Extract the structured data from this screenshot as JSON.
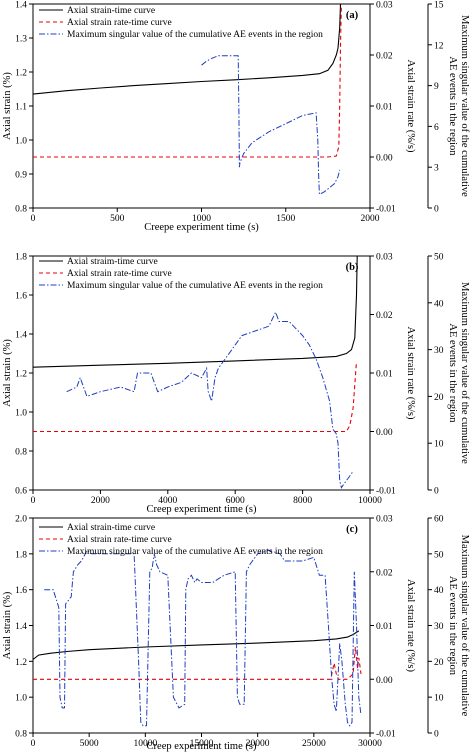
{
  "chart_data": [
    {
      "type": "line",
      "panel_label": "(a)",
      "xlabel": "Creepe experiment time (s)",
      "ylabel": "Axial strain (%)",
      "y2label": "Axial strain rate (%/s)",
      "y3label_line1": "Maximum singular value of the cumulative",
      "y3label_line2": "AE events in the region",
      "xlim": [
        0,
        2000
      ],
      "ylim": [
        0.8,
        1.4
      ],
      "y2lim": [
        -0.01,
        0.03
      ],
      "y3lim": [
        0,
        15
      ],
      "xticks": [
        "0",
        "500",
        "1000",
        "1500",
        "2000"
      ],
      "yticks": [
        "0.8",
        "0.9",
        "1.0",
        "1.1",
        "1.2",
        "1.3",
        "1.4"
      ],
      "y2ticks": [
        "-0.01",
        "0.00",
        "0.01",
        "0.02",
        "0.03"
      ],
      "y3ticks": [
        "0",
        "3",
        "6",
        "9",
        "12",
        "15"
      ],
      "legend": [
        "Axial strain-time curve",
        "Axial strain rate-time curve",
        "Maximum singular value of the cumulative AE events in the region"
      ],
      "series": [
        {
          "name": "Axial strain-time curve",
          "axis": "y",
          "x": [
            0,
            200,
            400,
            600,
            800,
            1000,
            1200,
            1400,
            1600,
            1700,
            1750,
            1780,
            1800,
            1810,
            1820,
            1825
          ],
          "values": [
            1.135,
            1.145,
            1.153,
            1.16,
            1.166,
            1.172,
            1.177,
            1.183,
            1.19,
            1.195,
            1.205,
            1.225,
            1.25,
            1.27,
            1.33,
            1.4
          ]
        },
        {
          "name": "Axial strain rate-time curve",
          "axis": "y2",
          "x": [
            0,
            500,
            1000,
            1500,
            1750,
            1800,
            1815,
            1820,
            1825,
            1830
          ],
          "values": [
            0.0,
            0.0,
            0.0,
            0.0,
            0.0,
            0.0002,
            0.002,
            0.01,
            0.022,
            0.03
          ]
        },
        {
          "name": "Maximum singular value of the cumulative AE events in the region",
          "axis": "y3",
          "x": [
            1000,
            1030,
            1060,
            1100,
            1150,
            1200,
            1218,
            1222,
            1225,
            1228,
            1250,
            1300,
            1400,
            1500,
            1600,
            1680,
            1690,
            1695,
            1700,
            1730,
            1760,
            1790,
            1810,
            1820
          ],
          "values": [
            10.5,
            10.8,
            11.0,
            11.2,
            11.2,
            11.2,
            11.2,
            7,
            3.0,
            3.3,
            4.0,
            4.8,
            5.6,
            6.2,
            6.8,
            7.0,
            5,
            2.5,
            1.0,
            1.2,
            1.5,
            1.8,
            2.3,
            2.8
          ]
        }
      ]
    },
    {
      "type": "line",
      "panel_label": "(b)",
      "xlabel": "Creep experiment time (s)",
      "ylabel": "Axial strain (%)",
      "y2label": "Axial strain rate (%/s)",
      "y3label_line1": "Maximum singular value of the cumulative",
      "y3label_line2": "AE events in the region",
      "xlim": [
        0,
        10000
      ],
      "ylim": [
        0.6,
        1.8
      ],
      "y2lim": [
        -0.01,
        0.03
      ],
      "y3lim": [
        0,
        50
      ],
      "xticks": [
        "0",
        "2000",
        "4000",
        "6000",
        "8000",
        "10000"
      ],
      "yticks": [
        "0.6",
        "0.8",
        "1.0",
        "1.2",
        "1.4",
        "1.6",
        "1.8"
      ],
      "y2ticks": [
        "-0.01",
        "0.00",
        "0.01",
        "0.02",
        "0.03"
      ],
      "y3ticks": [
        "0",
        "10",
        "20",
        "30",
        "40",
        "50"
      ],
      "legend": [
        "Axial straim-time curve",
        "Axial strain rate-time curve",
        "Maximum singular value of the cumulative AE events in the region"
      ],
      "series": [
        {
          "name": "Axial straim-time curve",
          "axis": "y",
          "x": [
            0,
            2000,
            4000,
            6000,
            8000,
            9000,
            9300,
            9450,
            9550,
            9600,
            9620
          ],
          "values": [
            1.23,
            1.24,
            1.25,
            1.262,
            1.275,
            1.285,
            1.3,
            1.32,
            1.38,
            1.6,
            1.8
          ]
        },
        {
          "name": "Axial strain rate-time curve",
          "axis": "y2",
          "x": [
            0,
            2000,
            4000,
            6000,
            8000,
            9000,
            9300,
            9400,
            9500,
            9550,
            9600
          ],
          "values": [
            0.0,
            0.0,
            0.0,
            0.0,
            0.0,
            0.0,
            0.0,
            0.001,
            0.004,
            0.008,
            0.012
          ]
        },
        {
          "name": "Maximum singular value of the cumulative AE events in the region",
          "axis": "y3",
          "x": [
            1000,
            1300,
            1400,
            1600,
            2000,
            2600,
            3000,
            3100,
            3500,
            3700,
            4000,
            4400,
            4700,
            5000,
            5150,
            5200,
            5300,
            5400,
            5500,
            5800,
            6200,
            6600,
            7000,
            7200,
            7300,
            7600,
            8000,
            8200,
            8400,
            8600,
            8800,
            8900,
            9000,
            9050,
            9100,
            9150,
            9200,
            9300,
            9400,
            9500
          ],
          "values": [
            21,
            22,
            24,
            20,
            21,
            22,
            21,
            25,
            25,
            21,
            22,
            23,
            25,
            24,
            26,
            21,
            19,
            24,
            26,
            29,
            33,
            34,
            35,
            38,
            36,
            36,
            33,
            31,
            28,
            24,
            19,
            13,
            12,
            10,
            2,
            0.5,
            1,
            2,
            3,
            4
          ]
        }
      ]
    },
    {
      "type": "line",
      "panel_label": "(c)",
      "xlabel": "Creep experiment time (s)",
      "ylabel": "Axial strain (%)",
      "y2label": "Axial strain rate (%/s)",
      "y3label_line1": "Maximum singular value of the cumulative",
      "y3label_line2": "AE events in the region",
      "xlim": [
        0,
        30000
      ],
      "ylim": [
        0.8,
        2.0
      ],
      "y2lim": [
        -0.01,
        0.03
      ],
      "y3lim": [
        0,
        60
      ],
      "xticks": [
        "0",
        "5000",
        "10000",
        "15000",
        "20000",
        "25000",
        "30000"
      ],
      "yticks": [
        "0.8",
        "1.0",
        "1.2",
        "1.4",
        "1.6",
        "1.8",
        "2.0"
      ],
      "y2ticks": [
        "-0.01",
        "0.00",
        "0.01",
        "0.02",
        "0.03"
      ],
      "y3ticks": [
        "0",
        "10",
        "20",
        "30",
        "40",
        "50",
        "60"
      ],
      "legend": [
        "Axial strain-time curve",
        "Axial strain rate-time curve",
        "Maximum singular value of the cumulative AE events in the region"
      ],
      "series": [
        {
          "name": "Axial strain-time curve",
          "axis": "y",
          "x": [
            0,
            500,
            1500,
            3000,
            5000,
            10000,
            15000,
            20000,
            25000,
            27000,
            28000,
            28500,
            29000
          ],
          "values": [
            1.21,
            1.235,
            1.245,
            1.255,
            1.265,
            1.28,
            1.292,
            1.302,
            1.315,
            1.325,
            1.335,
            1.35,
            1.37
          ]
        },
        {
          "name": "Axial strain rate-time curve",
          "axis": "y2",
          "x": [
            0,
            5000,
            10000,
            15000,
            20000,
            25000,
            26500,
            26800,
            27000,
            27200,
            27500,
            28000,
            28500,
            28700,
            28900,
            29000,
            29200
          ],
          "values": [
            0.0,
            0.0,
            0.0,
            0.0,
            0.0,
            0.0,
            0.0,
            0.003,
            0.001,
            0.0,
            0.0,
            0.0,
            0.001,
            0.006,
            0.002,
            0.004,
            0.001
          ]
        },
        {
          "name": "Maximum singular value of the cumulative AE events in the region",
          "axis": "y3",
          "x": [
            1000,
            1800,
            2300,
            2400,
            2600,
            2800,
            2900,
            3400,
            3600,
            4000,
            4300,
            4500,
            4800,
            5200,
            6000,
            7000,
            8000,
            9000,
            9400,
            9600,
            9800,
            10100,
            10400,
            10600,
            10800,
            11000,
            11300,
            12000,
            12500,
            13000,
            13500,
            13600,
            13800,
            14100,
            14400,
            14600,
            15000,
            16000,
            17000,
            18000,
            18200,
            18400,
            18800,
            19000,
            19300,
            20000,
            21000,
            22000,
            22400,
            23000,
            24000,
            25000,
            25500,
            26000,
            26300,
            26600,
            26800,
            27000,
            27300,
            27500,
            27800,
            28000,
            28200,
            28400,
            28600,
            28800,
            29000,
            29200
          ],
          "values": [
            40,
            40,
            35,
            10,
            7,
            7,
            36,
            38,
            45,
            47,
            48,
            49,
            51,
            50,
            50,
            50,
            50,
            50,
            20,
            3,
            2,
            2,
            45,
            46,
            50,
            47,
            45,
            44,
            10,
            7,
            8,
            40,
            43,
            44,
            42,
            43,
            42,
            42,
            44,
            45,
            10,
            8,
            8,
            45,
            47,
            50,
            51,
            50,
            48,
            48,
            48,
            49,
            44,
            44,
            30,
            15,
            8,
            6,
            25,
            20,
            8,
            3,
            2,
            3,
            45,
            30,
            10,
            5
          ]
        }
      ]
    }
  ]
}
